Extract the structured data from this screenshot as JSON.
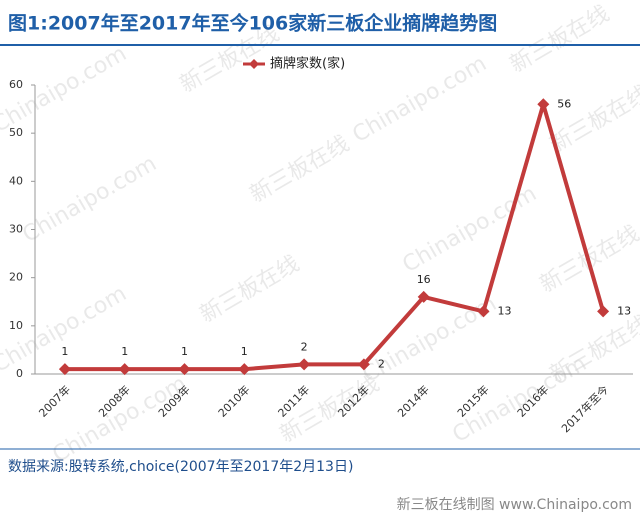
{
  "chart_data": {
    "type": "line",
    "title": "图1:2007年至2017年至今106家新三板企业摘牌趋势图",
    "categories": [
      "2007年",
      "2008年",
      "2009年",
      "2010年",
      "2011年",
      "2012年",
      "2014年",
      "2015年",
      "2016年",
      "2017年至今"
    ],
    "series": [
      {
        "name": "摘牌家数(家)",
        "color": "#c23b3b",
        "values": [
          1,
          1,
          1,
          1,
          2,
          2,
          16,
          13,
          56,
          13
        ]
      }
    ],
    "ylim": [
      0,
      60
    ],
    "yticks": [
      0,
      10,
      20,
      30,
      40,
      50,
      60
    ],
    "grid": false,
    "source": "数据来源:股转系统,choice(2007年至2017年2月13日)",
    "credit": "新三板在线制图 www.Chinaipo.com",
    "watermark": [
      "Chinaipo.com",
      "新三板在线"
    ]
  }
}
